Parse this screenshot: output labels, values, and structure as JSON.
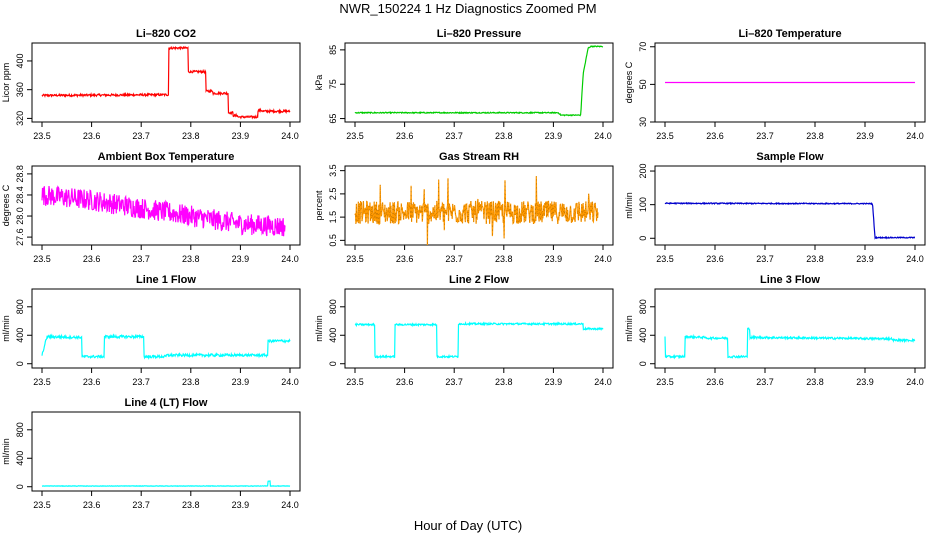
{
  "figure": {
    "title": "NWR_150224  1 Hz Diagnostics Zoomed PM",
    "xlabel": "Hour of Day (UTC)"
  },
  "chart_data": [
    {
      "id": "li820-co2",
      "type": "line",
      "title": "Li–820 CO2",
      "ylabel": "Licor ppm",
      "xlim": [
        23.5,
        24.0
      ],
      "ylim": [
        315,
        425
      ],
      "xticks": [
        "23.5",
        "23.6",
        "23.7",
        "23.8",
        "23.9",
        "24.0"
      ],
      "yticks": [
        "320",
        "360",
        "400"
      ],
      "color": "#ff0000",
      "noise": 1.5,
      "series": [
        {
          "x": [
            23.5,
            23.755,
            23.755,
            23.795,
            23.795,
            23.83,
            23.83,
            23.845,
            23.845,
            23.875,
            23.875,
            23.885,
            23.885,
            23.895,
            23.895,
            23.935,
            23.935,
            23.945,
            23.945,
            24.0
          ],
          "y": [
            352,
            353,
            418,
            418,
            385,
            385,
            358,
            358,
            355,
            355,
            328,
            328,
            324,
            324,
            322,
            322,
            331,
            331,
            330,
            330
          ]
        }
      ]
    },
    {
      "id": "li820-pressure",
      "type": "line",
      "title": "Li–820 Pressure",
      "ylabel": "kPa",
      "xlim": [
        23.5,
        24.0
      ],
      "ylim": [
        64,
        87
      ],
      "xticks": [
        "23.5",
        "23.6",
        "23.7",
        "23.8",
        "23.9",
        "24.0"
      ],
      "yticks": [
        "65",
        "75",
        "85"
      ],
      "color": "#00cc00",
      "noise": 0.15,
      "series": [
        {
          "x": [
            23.5,
            23.91,
            23.915,
            23.955,
            23.96,
            23.97,
            23.975,
            24.0
          ],
          "y": [
            66.7,
            66.7,
            66.0,
            66.0,
            78.0,
            85.5,
            86.0,
            86.0
          ]
        }
      ]
    },
    {
      "id": "li820-temperature",
      "type": "line",
      "title": "Li–820 Temperature",
      "ylabel": "degrees C",
      "xlim": [
        23.5,
        24.0
      ],
      "ylim": [
        30,
        72
      ],
      "xticks": [
        "23.5",
        "23.6",
        "23.7",
        "23.8",
        "23.9",
        "24.0"
      ],
      "yticks": [
        "30",
        "50",
        "70"
      ],
      "color": "#ff00ff",
      "noise": 0,
      "series": [
        {
          "x": [
            23.5,
            24.0
          ],
          "y": [
            51.0,
            51.0
          ]
        }
      ]
    },
    {
      "id": "ambient-box-temperature",
      "type": "line",
      "title": "Ambient Box Temperature",
      "ylabel": "degrees C",
      "xlim": [
        23.5,
        24.0
      ],
      "ylim": [
        27.45,
        28.95
      ],
      "xticks": [
        "23.5",
        "23.6",
        "23.7",
        "23.8",
        "23.9",
        "24.0"
      ],
      "yticks": [
        "27.6",
        "28.0",
        "28.4",
        "28.8"
      ],
      "color": "#ff00ff",
      "noise": 0.2,
      "series": [
        {
          "x": [
            23.5,
            23.6,
            23.7,
            23.8,
            23.9,
            23.99
          ],
          "y": [
            28.4,
            28.3,
            28.15,
            28.0,
            27.85,
            27.8
          ]
        }
      ]
    },
    {
      "id": "gas-stream-rh",
      "type": "line",
      "title": "Gas Stream RH",
      "ylabel": "percent",
      "xlim": [
        23.5,
        24.0
      ],
      "ylim": [
        0.3,
        3.7
      ],
      "xticks": [
        "23.5",
        "23.6",
        "23.7",
        "23.8",
        "23.9",
        "24.0"
      ],
      "yticks": [
        "0.5",
        "1.5",
        "2.5",
        "3.5"
      ],
      "color": "#ff9900",
      "noise": 0.5,
      "series": [
        {
          "x": [
            23.5,
            23.99
          ],
          "y": [
            1.7,
            1.7
          ]
        }
      ]
    },
    {
      "id": "sample-flow",
      "type": "line",
      "title": "Sample Flow",
      "ylabel": "ml/min",
      "xlim": [
        23.5,
        24.0
      ],
      "ylim": [
        -20,
        215
      ],
      "xticks": [
        "23.5",
        "23.6",
        "23.7",
        "23.8",
        "23.9",
        "24.0"
      ],
      "yticks": [
        "0",
        "100",
        "200"
      ],
      "color": "#0000cc",
      "noise": 1.5,
      "series": [
        {
          "x": [
            23.5,
            23.91,
            23.915,
            23.92,
            24.0
          ],
          "y": [
            104,
            103,
            103,
            2,
            2
          ]
        }
      ]
    },
    {
      "id": "line1-flow",
      "type": "line",
      "title": "Line 1 Flow",
      "ylabel": "ml/min",
      "xlim": [
        23.5,
        24.0
      ],
      "ylim": [
        -60,
        1050
      ],
      "xticks": [
        "23.5",
        "23.6",
        "23.7",
        "23.8",
        "23.9",
        "24.0"
      ],
      "yticks": [
        "0",
        "400",
        "800"
      ],
      "color": "#00ffff",
      "noise": 18,
      "series": [
        {
          "x": [
            23.5,
            23.51,
            23.51,
            23.58,
            23.58,
            23.625,
            23.625,
            23.705,
            23.705,
            23.75,
            23.75,
            23.955,
            23.955,
            24.0
          ],
          "y": [
            120,
            380,
            380,
            370,
            100,
            100,
            380,
            380,
            100,
            100,
            120,
            120,
            320,
            320
          ]
        }
      ]
    },
    {
      "id": "line2-flow",
      "type": "line",
      "title": "Line 2 Flow",
      "ylabel": "ml/min",
      "xlim": [
        23.5,
        24.0
      ],
      "ylim": [
        -60,
        1050
      ],
      "xticks": [
        "23.5",
        "23.6",
        "23.7",
        "23.8",
        "23.9",
        "24.0"
      ],
      "yticks": [
        "0",
        "400",
        "800"
      ],
      "color": "#00ffff",
      "noise": 12,
      "series": [
        {
          "x": [
            23.5,
            23.54,
            23.54,
            23.58,
            23.58,
            23.665,
            23.665,
            23.708,
            23.708,
            23.96,
            23.96,
            24.0
          ],
          "y": [
            550,
            550,
            100,
            100,
            550,
            550,
            100,
            100,
            560,
            560,
            490,
            490
          ]
        }
      ]
    },
    {
      "id": "line3-flow",
      "type": "line",
      "title": "Line 3 Flow",
      "ylabel": "ml/min",
      "xlim": [
        23.5,
        24.0
      ],
      "ylim": [
        -60,
        1050
      ],
      "xticks": [
        "23.5",
        "23.6",
        "23.7",
        "23.8",
        "23.9",
        "24.0"
      ],
      "yticks": [
        "0",
        "400",
        "800"
      ],
      "color": "#00ffff",
      "noise": 14,
      "series": [
        {
          "x": [
            23.5,
            23.5,
            23.54,
            23.54,
            23.58,
            23.58,
            23.625,
            23.625,
            23.665,
            23.665,
            23.67,
            23.67,
            23.955,
            23.955,
            24.0
          ],
          "y": [
            380,
            100,
            100,
            380,
            370,
            360,
            360,
            100,
            100,
            490,
            490,
            370,
            350,
            330,
            330
          ]
        }
      ]
    },
    {
      "id": "line4-flow",
      "type": "line",
      "title": "Line 4 (LT) Flow",
      "ylabel": "ml/min",
      "xlim": [
        23.5,
        24.0
      ],
      "ylim": [
        -60,
        1050
      ],
      "xticks": [
        "23.5",
        "23.6",
        "23.7",
        "23.8",
        "23.9",
        "24.0"
      ],
      "yticks": [
        "0",
        "400",
        "800"
      ],
      "color": "#00ffff",
      "noise": 3,
      "series": [
        {
          "x": [
            23.5,
            23.955,
            23.955,
            23.96,
            23.96,
            24.0
          ],
          "y": [
            10,
            10,
            80,
            80,
            10,
            10
          ]
        }
      ]
    }
  ]
}
